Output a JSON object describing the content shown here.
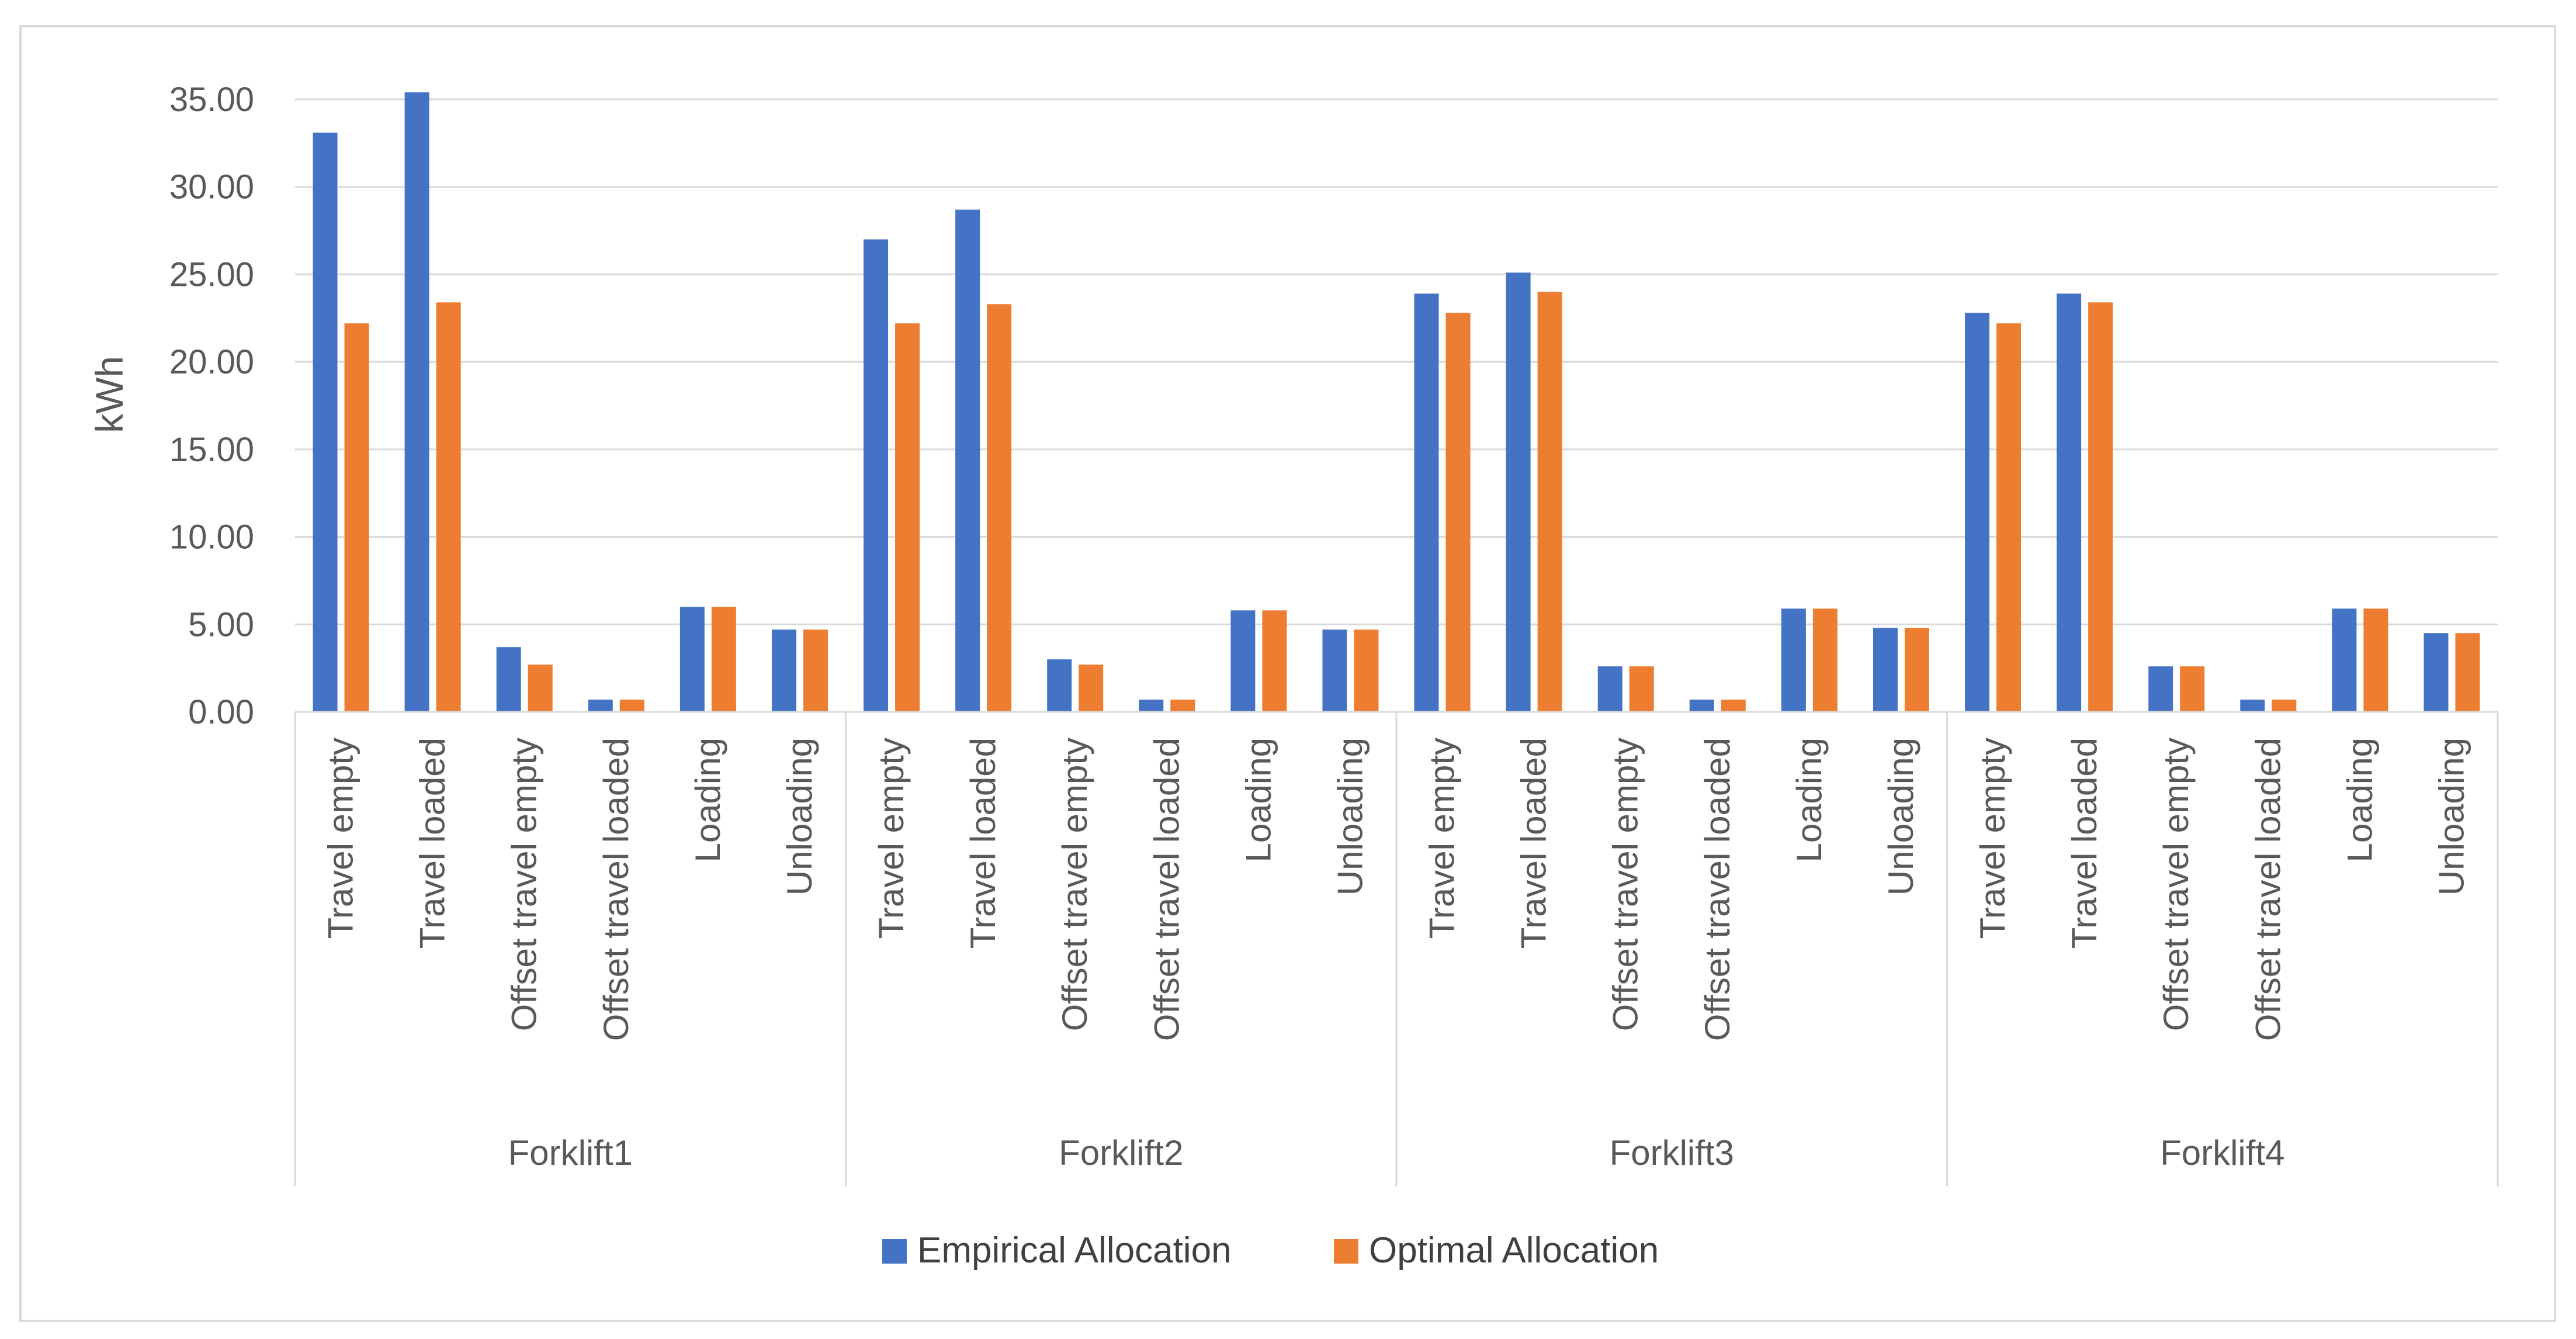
{
  "chart_data": {
    "type": "bar",
    "title": "",
    "xlabel": "",
    "ylabel": "kWh",
    "ylim": [
      0,
      35
    ],
    "yticks": [
      "0.00",
      "5.00",
      "10.00",
      "15.00",
      "20.00",
      "25.00",
      "30.00",
      "35.00"
    ],
    "grid": true,
    "legend_position": "bottom",
    "groups": [
      "Forklift1",
      "Forklift2",
      "Forklift3",
      "Forklift4"
    ],
    "categories": [
      "Travel empty",
      "Travel loaded",
      "Offset travel empty",
      "Offset travel loaded",
      "Loading",
      "Unloading"
    ],
    "series": [
      {
        "name": "Empirical Allocation",
        "color": "#4472C4",
        "values": [
          [
            33.1,
            35.4,
            3.7,
            0.7,
            6.0,
            4.7
          ],
          [
            27.0,
            28.7,
            3.0,
            0.7,
            5.8,
            4.7
          ],
          [
            23.9,
            25.1,
            2.6,
            0.7,
            5.9,
            4.8
          ],
          [
            22.8,
            23.9,
            2.6,
            0.7,
            5.9,
            4.5
          ]
        ]
      },
      {
        "name": "Optimal Allocation",
        "color": "#ED7D31",
        "values": [
          [
            22.2,
            23.4,
            2.7,
            0.7,
            6.0,
            4.7
          ],
          [
            22.2,
            23.3,
            2.7,
            0.7,
            5.8,
            4.7
          ],
          [
            22.8,
            24.0,
            2.6,
            0.7,
            5.9,
            4.8
          ],
          [
            22.2,
            23.4,
            2.6,
            0.7,
            5.9,
            4.5
          ]
        ]
      }
    ]
  }
}
